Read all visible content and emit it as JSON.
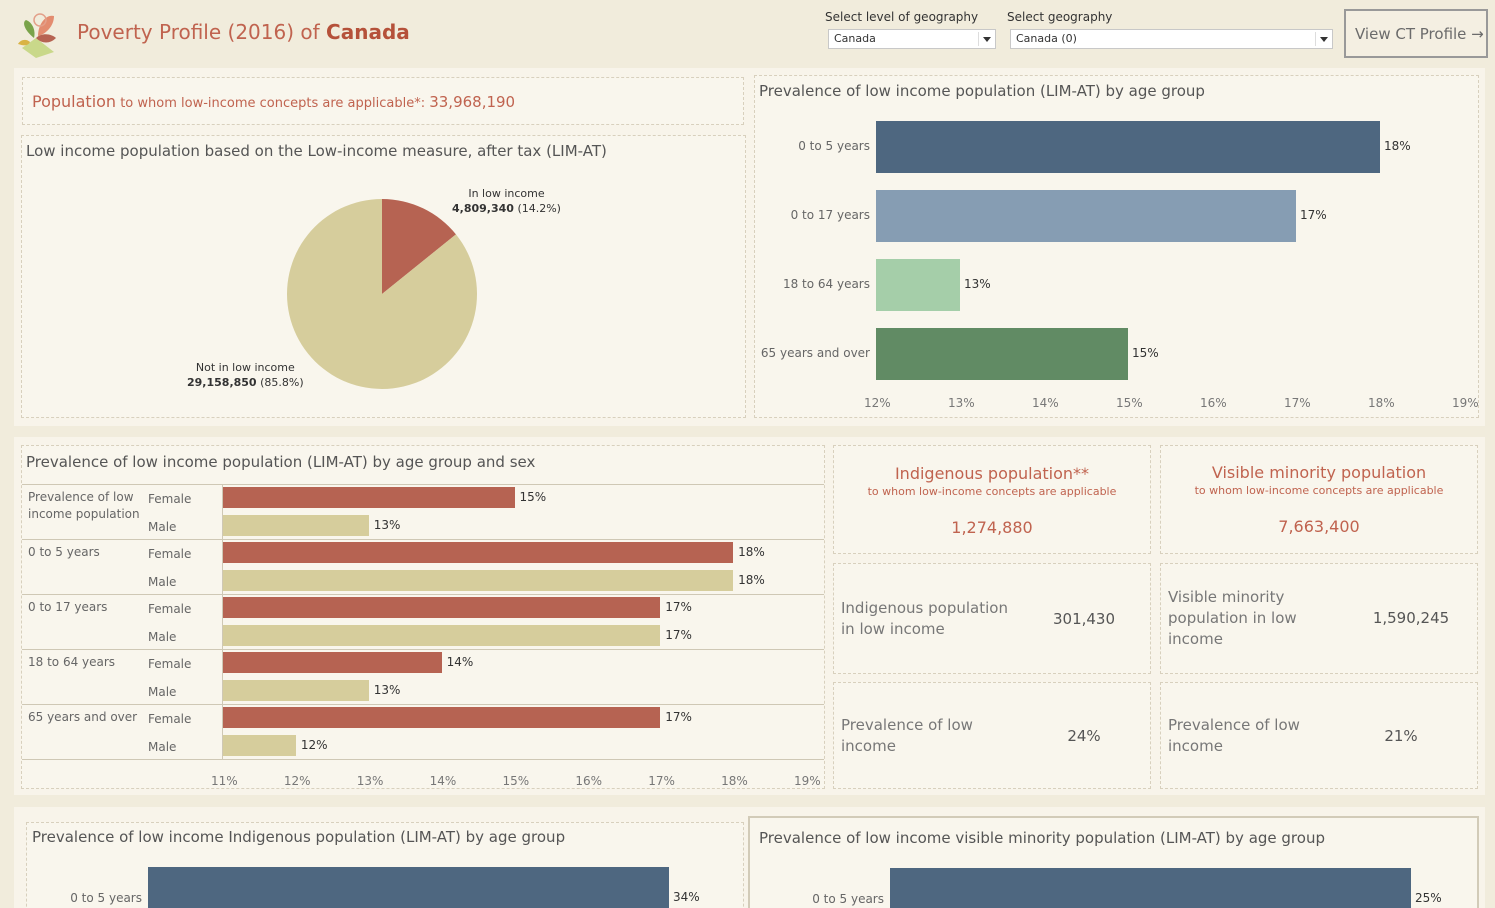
{
  "header": {
    "title_prefix": "Poverty Profile (2016) of ",
    "title_place": "Canada",
    "level_label": "Select level of geography",
    "level_value": "Canada",
    "geo_label": "Select geography",
    "geo_value": "Canada (0)",
    "ct_button": "View CT Profile →"
  },
  "population": {
    "label": "Population",
    "qualifier": " to whom low-income concepts are applicable*: ",
    "value": "33,968,190"
  },
  "pie": {
    "title": "Low income population based on the Low-income measure, after tax (LIM-AT)",
    "slices": [
      {
        "label": "In low income",
        "count": "4,809,340",
        "pct": "(14.2%)",
        "value": 14.2,
        "color": "#b66352"
      },
      {
        "label": "Not in low income",
        "count": "29,158,850",
        "pct": "(85.8%)",
        "value": 85.8,
        "color": "#d6cd9c"
      }
    ]
  },
  "age_chart": {
    "title": "Prevalence of low income population (LIM-AT) by age group",
    "chart_data": {
      "type": "bar",
      "categories": [
        "0 to 5 years",
        "0 to 17 years",
        "18 to 64 years",
        "65 years and over"
      ],
      "values": [
        18,
        17,
        13,
        15
      ],
      "labels": [
        "18%",
        "17%",
        "13%",
        "15%"
      ],
      "colors": [
        "#4e6780",
        "#869db3",
        "#a5cea9",
        "#618b64"
      ],
      "xlim": [
        12,
        19
      ],
      "ticks": [
        "12%",
        "13%",
        "14%",
        "15%",
        "16%",
        "17%",
        "18%",
        "19%"
      ]
    }
  },
  "sex_chart": {
    "title": "Prevalence of low income population (LIM-AT) by age group and sex",
    "chart_data": {
      "type": "bar",
      "groups": [
        {
          "age": "Prevalence of low income population",
          "rows": [
            {
              "sex": "Female",
              "value": 15,
              "label": "15%"
            },
            {
              "sex": "Male",
              "value": 13,
              "label": "13%"
            }
          ]
        },
        {
          "age": "0 to 5 years",
          "rows": [
            {
              "sex": "Female",
              "value": 18,
              "label": "18%"
            },
            {
              "sex": "Male",
              "value": 18,
              "label": "18%"
            }
          ]
        },
        {
          "age": "0 to 17 years",
          "rows": [
            {
              "sex": "Female",
              "value": 17,
              "label": "17%"
            },
            {
              "sex": "Male",
              "value": 17,
              "label": "17%"
            }
          ]
        },
        {
          "age": "18 to 64 years",
          "rows": [
            {
              "sex": "Female",
              "value": 14,
              "label": "14%"
            },
            {
              "sex": "Male",
              "value": 13,
              "label": "13%"
            }
          ]
        },
        {
          "age": "65 years and over",
          "rows": [
            {
              "sex": "Female",
              "value": 17,
              "label": "17%"
            },
            {
              "sex": "Male",
              "value": 12,
              "label": "12%"
            }
          ]
        }
      ],
      "colors": {
        "Female": "#b66352",
        "Male": "#d6cd9c"
      },
      "xlim": [
        11,
        19
      ],
      "ticks": [
        "11%",
        "12%",
        "13%",
        "14%",
        "15%",
        "16%",
        "17%",
        "18%",
        "19%"
      ]
    }
  },
  "indigenous": {
    "title": "Indigenous population**",
    "subtitle": "to whom low-income concepts are applicable",
    "value": "1,274,880",
    "low_income_label": "Indigenous population in low income",
    "low_income_value": "301,430",
    "prevalence_label": "Prevalence of low income",
    "prevalence_value": "24%"
  },
  "visible_minority": {
    "title": "Visible minority population",
    "subtitle": "to whom low-income concepts are applicable",
    "value": "7,663,400",
    "low_income_label": "Visible minority population in low income",
    "low_income_value": "1,590,245",
    "prevalence_label": "Prevalence of low income",
    "prevalence_value": "21%"
  },
  "ind_age_chart": {
    "title": "Prevalence of low income Indigenous population (LIM-AT) by age group",
    "chart_data": {
      "type": "bar",
      "categories": [
        "0 to 5 years"
      ],
      "values": [
        34
      ],
      "labels": [
        "34%"
      ],
      "color": "#4e6780"
    }
  },
  "vm_age_chart": {
    "title": "Prevalence of low income visible minority population (LIM-AT) by age group",
    "chart_data": {
      "type": "bar",
      "categories": [
        "0 to 5 years"
      ],
      "values": [
        25
      ],
      "labels": [
        "25%"
      ],
      "color": "#4e6780"
    }
  }
}
